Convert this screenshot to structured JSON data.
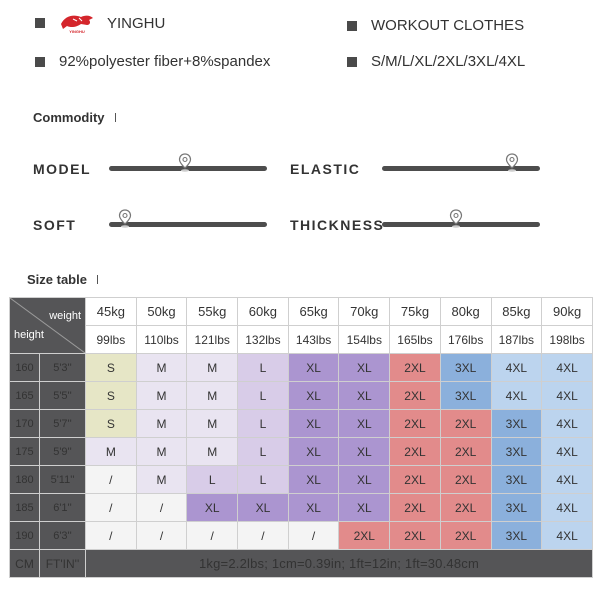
{
  "product": {
    "brand": "YINGHU",
    "category": "WORKOUT CLOTHES",
    "material": "92%polyester fiber+8%spandex",
    "sizes": "S/M/L/XL/2XL/3XL/4XL",
    "logo_text": "YINGHU"
  },
  "commodity": {
    "title": "Commodity",
    "attributes": [
      {
        "label": "MODEL",
        "level": 0.48
      },
      {
        "label": "ELASTIC",
        "level": 0.82
      },
      {
        "label": "SOFT",
        "level": 0.1
      },
      {
        "label": "THICKNESS",
        "level": 0.47
      }
    ]
  },
  "size_table": {
    "title": "Size table",
    "weight_header": "weight",
    "height_header": "height",
    "weights_kg": [
      "45kg",
      "50kg",
      "55kg",
      "60kg",
      "65kg",
      "70kg",
      "75kg",
      "80kg",
      "85kg",
      "90kg"
    ],
    "weights_lbs": [
      "99lbs",
      "110lbs",
      "121lbs",
      "132lbs",
      "143lbs",
      "154lbs",
      "165lbs",
      "176lbs",
      "187lbs",
      "198lbs"
    ],
    "rows": [
      {
        "cm": "160",
        "ft": "5'3''",
        "sizes": [
          "S",
          "M",
          "M",
          "L",
          "XL",
          "XL",
          "2XL",
          "3XL",
          "4XL",
          "4XL"
        ]
      },
      {
        "cm": "165",
        "ft": "5'5''",
        "sizes": [
          "S",
          "M",
          "M",
          "L",
          "XL",
          "XL",
          "2XL",
          "3XL",
          "4XL",
          "4XL"
        ]
      },
      {
        "cm": "170",
        "ft": "5'7''",
        "sizes": [
          "S",
          "M",
          "M",
          "L",
          "XL",
          "XL",
          "2XL",
          "2XL",
          "3XL",
          "4XL"
        ]
      },
      {
        "cm": "175",
        "ft": "5'9''",
        "sizes": [
          "M",
          "M",
          "M",
          "L",
          "XL",
          "XL",
          "2XL",
          "2XL",
          "3XL",
          "4XL"
        ]
      },
      {
        "cm": "180",
        "ft": "5'11''",
        "sizes": [
          "/",
          "M",
          "L",
          "L",
          "XL",
          "XL",
          "2XL",
          "2XL",
          "3XL",
          "4XL"
        ]
      },
      {
        "cm": "185",
        "ft": "6'1''",
        "sizes": [
          "/",
          "/",
          "XL",
          "XL",
          "XL",
          "XL",
          "2XL",
          "2XL",
          "3XL",
          "4XL"
        ]
      },
      {
        "cm": "190",
        "ft": "6'3''",
        "sizes": [
          "/",
          "/",
          "/",
          "/",
          "/",
          "2XL",
          "2XL",
          "2XL",
          "3XL",
          "4XL"
        ]
      }
    ],
    "footer": {
      "cm_label": "CM",
      "ft_label": "FT'IN''",
      "note": "1kg=2.2lbs; 1cm=0.39in; 1ft=12in; 1ft=30.48cm"
    },
    "colors": {
      "S": "#e6e6c6",
      "M": "#e9e4f1",
      "L": "#d8cce8",
      "XL": "#ab95d0",
      "2XL": "#e28b8b",
      "3XL": "#8bb0dc",
      "4XL": "#bcd4ee",
      "/": "#f4f4f4",
      "header": "#555557"
    }
  }
}
